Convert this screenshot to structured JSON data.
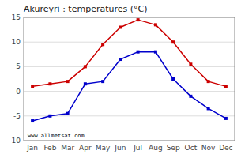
{
  "chart_data": {
    "type": "line",
    "title": "Akureyri : temperatures (°C)",
    "categories": [
      "Jan",
      "Feb",
      "Mar",
      "Apr",
      "May",
      "Jun",
      "Jul",
      "Aug",
      "Sep",
      "Oct",
      "Nov",
      "Dec"
    ],
    "series": [
      {
        "color": "#cc0000",
        "marker": "square",
        "values": [
          1.0,
          1.5,
          2.0,
          5.0,
          9.5,
          13.0,
          14.5,
          13.5,
          10.0,
          5.5,
          2.0,
          1.0
        ]
      },
      {
        "color": "#0000cc",
        "marker": "square",
        "values": [
          -6.0,
          -5.0,
          -4.5,
          1.5,
          2.0,
          6.5,
          8.0,
          8.0,
          2.5,
          -1.0,
          -3.5,
          -5.5
        ]
      }
    ],
    "ylim": [
      -10,
      15
    ],
    "yticks": [
      -10,
      -5,
      0,
      5,
      10,
      15
    ],
    "grid": true,
    "annotations": [
      "www.allmetsat.com"
    ]
  }
}
